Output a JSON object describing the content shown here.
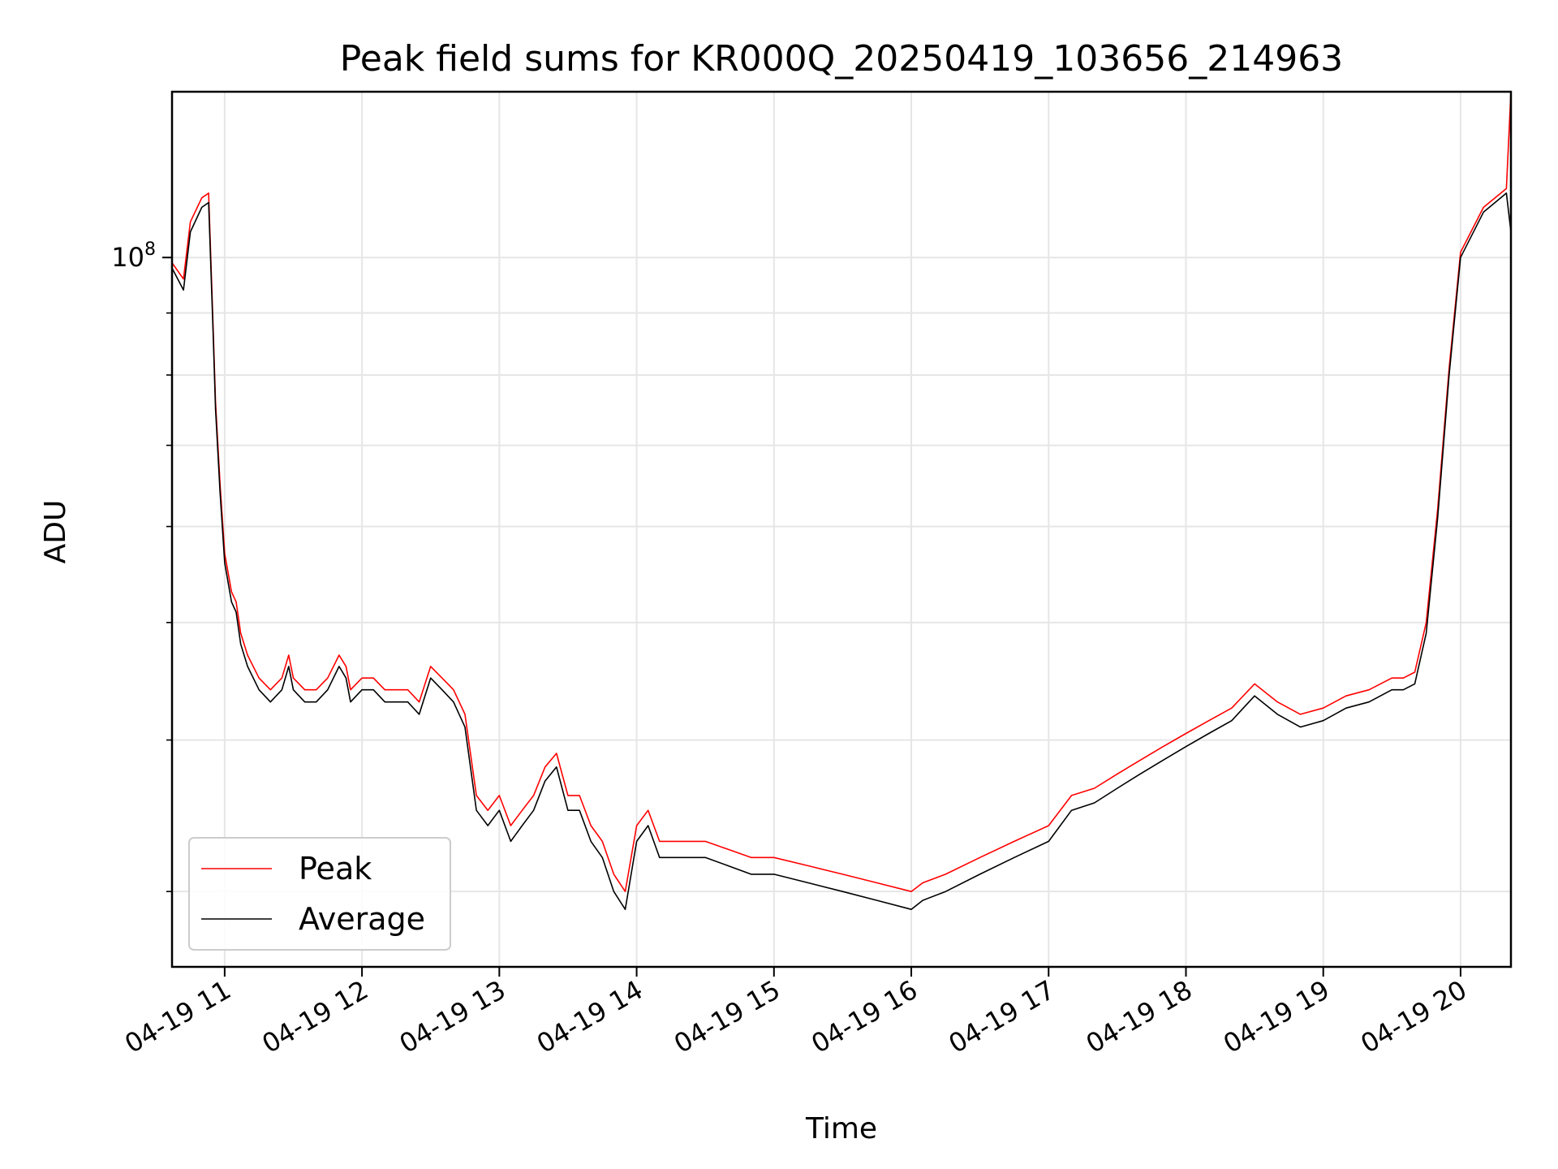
{
  "chart_data": {
    "type": "line",
    "title": "Peak field sums for KR000Q_20250419_103656_214963",
    "xlabel": "Time",
    "ylabel": "ADU",
    "yscale": "log",
    "grid": true,
    "legend_position": "lower-left",
    "xlim": [
      "2025-04-19 10:37",
      "2025-04-19 20:22"
    ],
    "ylim": [
      26000000,
      137000000
    ],
    "x_ticks": [
      "04-19 11",
      "04-19 12",
      "04-19 13",
      "04-19 14",
      "04-19 15",
      "04-19 16",
      "04-19 17",
      "04-19 18",
      "04-19 19",
      "04-19 20"
    ],
    "y_ticks": [
      {
        "label_base": "10",
        "label_exp": "8",
        "value": 100000000
      }
    ],
    "series": [
      {
        "name": "Peak",
        "color": "#ff0000",
        "x": [
          "10:37",
          "10:42",
          "10:45",
          "10:50",
          "10:53",
          "10:55",
          "10:56",
          "10:58",
          "11:00",
          "11:03",
          "11:05",
          "11:07",
          "11:10",
          "11:15",
          "11:20",
          "11:25",
          "11:28",
          "11:30",
          "11:35",
          "11:40",
          "11:45",
          "11:50",
          "11:53",
          "11:55",
          "12:00",
          "12:05",
          "12:10",
          "12:15",
          "12:20",
          "12:25",
          "12:30",
          "12:35",
          "12:40",
          "12:45",
          "12:50",
          "12:55",
          "13:00",
          "13:05",
          "13:10",
          "13:15",
          "13:20",
          "13:25",
          "13:30",
          "13:35",
          "13:40",
          "13:45",
          "13:50",
          "13:55",
          "14:00",
          "14:05",
          "14:10",
          "14:15",
          "14:20",
          "14:25",
          "14:30",
          "14:40",
          "14:50",
          "15:00",
          "15:15",
          "15:30",
          "15:45",
          "16:00",
          "16:05",
          "16:15",
          "16:30",
          "16:45",
          "17:00",
          "17:10",
          "17:20",
          "17:30",
          "17:40",
          "17:50",
          "18:00",
          "18:10",
          "18:20",
          "18:30",
          "18:40",
          "18:50",
          "19:00",
          "19:10",
          "19:20",
          "19:30",
          "19:35",
          "19:40",
          "19:45",
          "19:50",
          "19:55",
          "20:00",
          "20:10",
          "20:20",
          "20:22"
        ],
        "values": [
          99000000,
          96000000,
          107000000,
          112000000,
          113000000,
          87000000,
          76000000,
          65000000,
          57000000,
          53000000,
          52000000,
          49000000,
          47000000,
          45000000,
          44000000,
          45000000,
          47000000,
          45000000,
          44000000,
          44000000,
          45000000,
          47000000,
          46000000,
          44000000,
          45000000,
          45000000,
          44000000,
          44000000,
          44000000,
          43000000,
          46000000,
          45000000,
          44000000,
          42000000,
          36000000,
          35000000,
          36000000,
          34000000,
          35000000,
          36000000,
          38000000,
          39000000,
          36000000,
          36000000,
          34000000,
          33000000,
          31000000,
          30000000,
          34000000,
          35000000,
          33000000,
          33000000,
          33000000,
          33000000,
          33000000,
          32500000,
          32000000,
          32000000,
          31500000,
          31000000,
          30500000,
          30000000,
          30500000,
          31000000,
          32000000,
          33000000,
          34000000,
          36000000,
          36500000,
          37500000,
          38500000,
          39500000,
          40500000,
          41500000,
          42500000,
          44500000,
          43000000,
          42000000,
          42500000,
          43500000,
          44000000,
          45000000,
          45000000,
          45500000,
          50000000,
          62000000,
          81000000,
          101000000,
          110000000,
          114000000,
          137000000
        ]
      },
      {
        "name": "Average",
        "color": "#000000",
        "x": [
          "10:37",
          "10:42",
          "10:45",
          "10:50",
          "10:53",
          "10:55",
          "10:56",
          "10:58",
          "11:00",
          "11:03",
          "11:05",
          "11:07",
          "11:10",
          "11:15",
          "11:20",
          "11:25",
          "11:28",
          "11:30",
          "11:35",
          "11:40",
          "11:45",
          "11:50",
          "11:53",
          "11:55",
          "12:00",
          "12:05",
          "12:10",
          "12:15",
          "12:20",
          "12:25",
          "12:30",
          "12:35",
          "12:40",
          "12:45",
          "12:50",
          "12:55",
          "13:00",
          "13:05",
          "13:10",
          "13:15",
          "13:20",
          "13:25",
          "13:30",
          "13:35",
          "13:40",
          "13:45",
          "13:50",
          "13:55",
          "14:00",
          "14:05",
          "14:10",
          "14:15",
          "14:20",
          "14:25",
          "14:30",
          "14:40",
          "14:50",
          "15:00",
          "15:15",
          "15:30",
          "15:45",
          "16:00",
          "16:05",
          "16:15",
          "16:30",
          "16:45",
          "17:00",
          "17:10",
          "17:20",
          "17:30",
          "17:40",
          "17:50",
          "18:00",
          "18:10",
          "18:20",
          "18:30",
          "18:40",
          "18:50",
          "19:00",
          "19:10",
          "19:20",
          "19:30",
          "19:35",
          "19:40",
          "19:45",
          "19:50",
          "19:55",
          "20:00",
          "20:10",
          "20:20",
          "20:22"
        ],
        "values": [
          98000000,
          94000000,
          105000000,
          110000000,
          111000000,
          86000000,
          75000000,
          64000000,
          56000000,
          52000000,
          51000000,
          48000000,
          46000000,
          44000000,
          43000000,
          44000000,
          46000000,
          44000000,
          43000000,
          43000000,
          44000000,
          46000000,
          45000000,
          43000000,
          44000000,
          44000000,
          43000000,
          43000000,
          43000000,
          42000000,
          45000000,
          44000000,
          43000000,
          41000000,
          35000000,
          34000000,
          35000000,
          33000000,
          34000000,
          35000000,
          37000000,
          38000000,
          35000000,
          35000000,
          33000000,
          32000000,
          30000000,
          29000000,
          33000000,
          34000000,
          32000000,
          32000000,
          32000000,
          32000000,
          32000000,
          31500000,
          31000000,
          31000000,
          30500000,
          30000000,
          29500000,
          29000000,
          29500000,
          30000000,
          31000000,
          32000000,
          33000000,
          35000000,
          35500000,
          36500000,
          37500000,
          38500000,
          39500000,
          40500000,
          41500000,
          43500000,
          42000000,
          41000000,
          41500000,
          42500000,
          43000000,
          44000000,
          44000000,
          44500000,
          49000000,
          61000000,
          80000000,
          100000000,
          109000000,
          113000000,
          105000000
        ]
      }
    ]
  }
}
